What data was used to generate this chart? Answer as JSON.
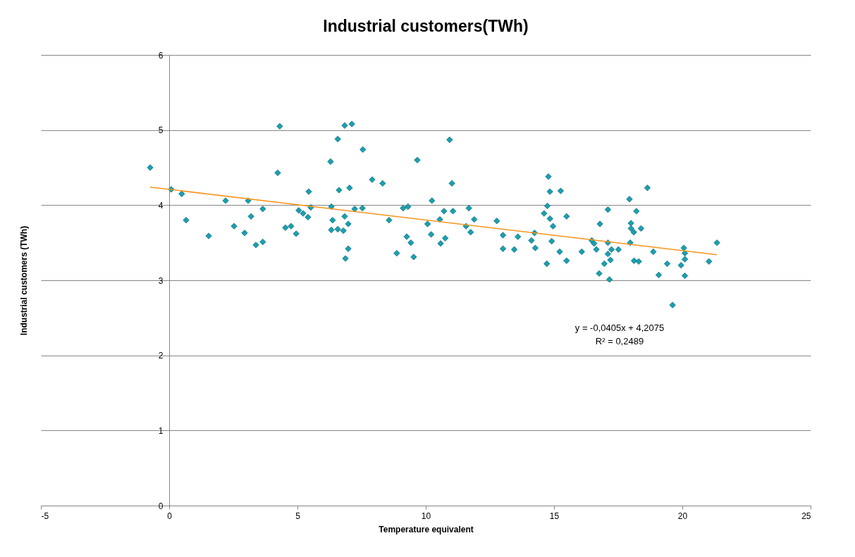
{
  "chart_data": {
    "type": "scatter",
    "title": "Industrial customers(TWh)",
    "xlabel": "Temperature equivalent",
    "ylabel": "Industrial customers (TWh)",
    "xlim": [
      -5,
      25
    ],
    "ylim": [
      0,
      6
    ],
    "xticks": [
      -5,
      0,
      5,
      10,
      15,
      20,
      25
    ],
    "yticks": [
      0,
      1,
      2,
      3,
      4,
      5,
      6
    ],
    "grid": "y",
    "marker": "diamond",
    "annotations": [
      "y = -0,0405x + 4,2075",
      "R² = 0,2489"
    ],
    "series": [
      {
        "color": "#1aa0b0",
        "x": [
          -0.74,
          0.08,
          0.49,
          0.66,
          1.54,
          2.2,
          2.53,
          2.94,
          3.08,
          3.19,
          3.38,
          3.65,
          3.65,
          4.23,
          4.31,
          4.53,
          4.75,
          4.95,
          5.05,
          5.22,
          5.41,
          5.44,
          5.52,
          6.29,
          6.32,
          6.37,
          6.32,
          6.57,
          6.57,
          6.62,
          6.79,
          6.84,
          6.84,
          6.87,
          6.98,
          6.98,
          7.03,
          7.12,
          7.23,
          7.55,
          7.53,
          7.91,
          8.32,
          8.57,
          8.87,
          9.12,
          9.26,
          9.31,
          9.42,
          9.53,
          9.67,
          10.07,
          10.24,
          10.21,
          10.55,
          10.71,
          10.58,
          10.76,
          10.93,
          11.02,
          11.06,
          11.57,
          11.68,
          11.75,
          11.89,
          12.77,
          13.01,
          13.01,
          13.45,
          13.59,
          14.12,
          14.24,
          14.27,
          14.72,
          14.61,
          14.74,
          14.78,
          14.84,
          14.84,
          14.96,
          14.91,
          15.26,
          15.22,
          15.49,
          15.49,
          16.08,
          16.47,
          16.56,
          16.65,
          16.76,
          16.79,
          16.96,
          17.1,
          17.1,
          17.1,
          17.2,
          17.16,
          17.24,
          17.51,
          17.94,
          17.97,
          18.0,
          18.0,
          18.11,
          18.12,
          18.21,
          18.3,
          18.39,
          18.64,
          18.87,
          19.08,
          19.41,
          19.62,
          19.95,
          20.06,
          20.1,
          20.1,
          20.1,
          21.04,
          21.35
        ],
        "values": [
          4.5,
          4.21,
          4.15,
          3.8,
          3.59,
          4.06,
          3.72,
          3.63,
          4.06,
          3.85,
          3.47,
          3.95,
          3.51,
          4.43,
          5.05,
          3.7,
          3.72,
          3.62,
          3.93,
          3.89,
          3.84,
          4.18,
          3.97,
          4.58,
          3.98,
          3.8,
          3.67,
          4.88,
          3.68,
          4.2,
          3.66,
          3.85,
          5.06,
          3.29,
          3.75,
          3.42,
          4.23,
          5.08,
          3.95,
          4.74,
          3.96,
          4.34,
          4.29,
          3.8,
          3.36,
          3.96,
          3.58,
          3.98,
          3.5,
          3.31,
          4.6,
          3.75,
          4.06,
          3.61,
          3.81,
          3.92,
          3.49,
          3.56,
          4.87,
          4.29,
          3.92,
          3.72,
          3.96,
          3.64,
          3.81,
          3.79,
          3.6,
          3.42,
          3.41,
          3.58,
          3.53,
          3.63,
          3.43,
          3.22,
          3.89,
          3.99,
          4.38,
          4.18,
          3.82,
          3.72,
          3.52,
          4.19,
          3.38,
          3.85,
          3.26,
          3.38,
          3.53,
          3.49,
          3.41,
          3.09,
          3.75,
          3.22,
          3.94,
          3.5,
          3.35,
          3.27,
          3.01,
          3.41,
          3.41,
          4.08,
          3.5,
          3.76,
          3.69,
          3.64,
          3.26,
          3.92,
          3.25,
          3.69,
          4.23,
          3.38,
          3.07,
          3.22,
          2.67,
          3.2,
          3.43,
          3.36,
          3.28,
          3.06,
          3.25,
          3.5
        ]
      },
      {
        "type": "line",
        "marker": "none",
        "color": "#f7941d",
        "x": [
          -0.74,
          21.35
        ],
        "values": [
          4.24,
          3.34
        ]
      }
    ]
  }
}
